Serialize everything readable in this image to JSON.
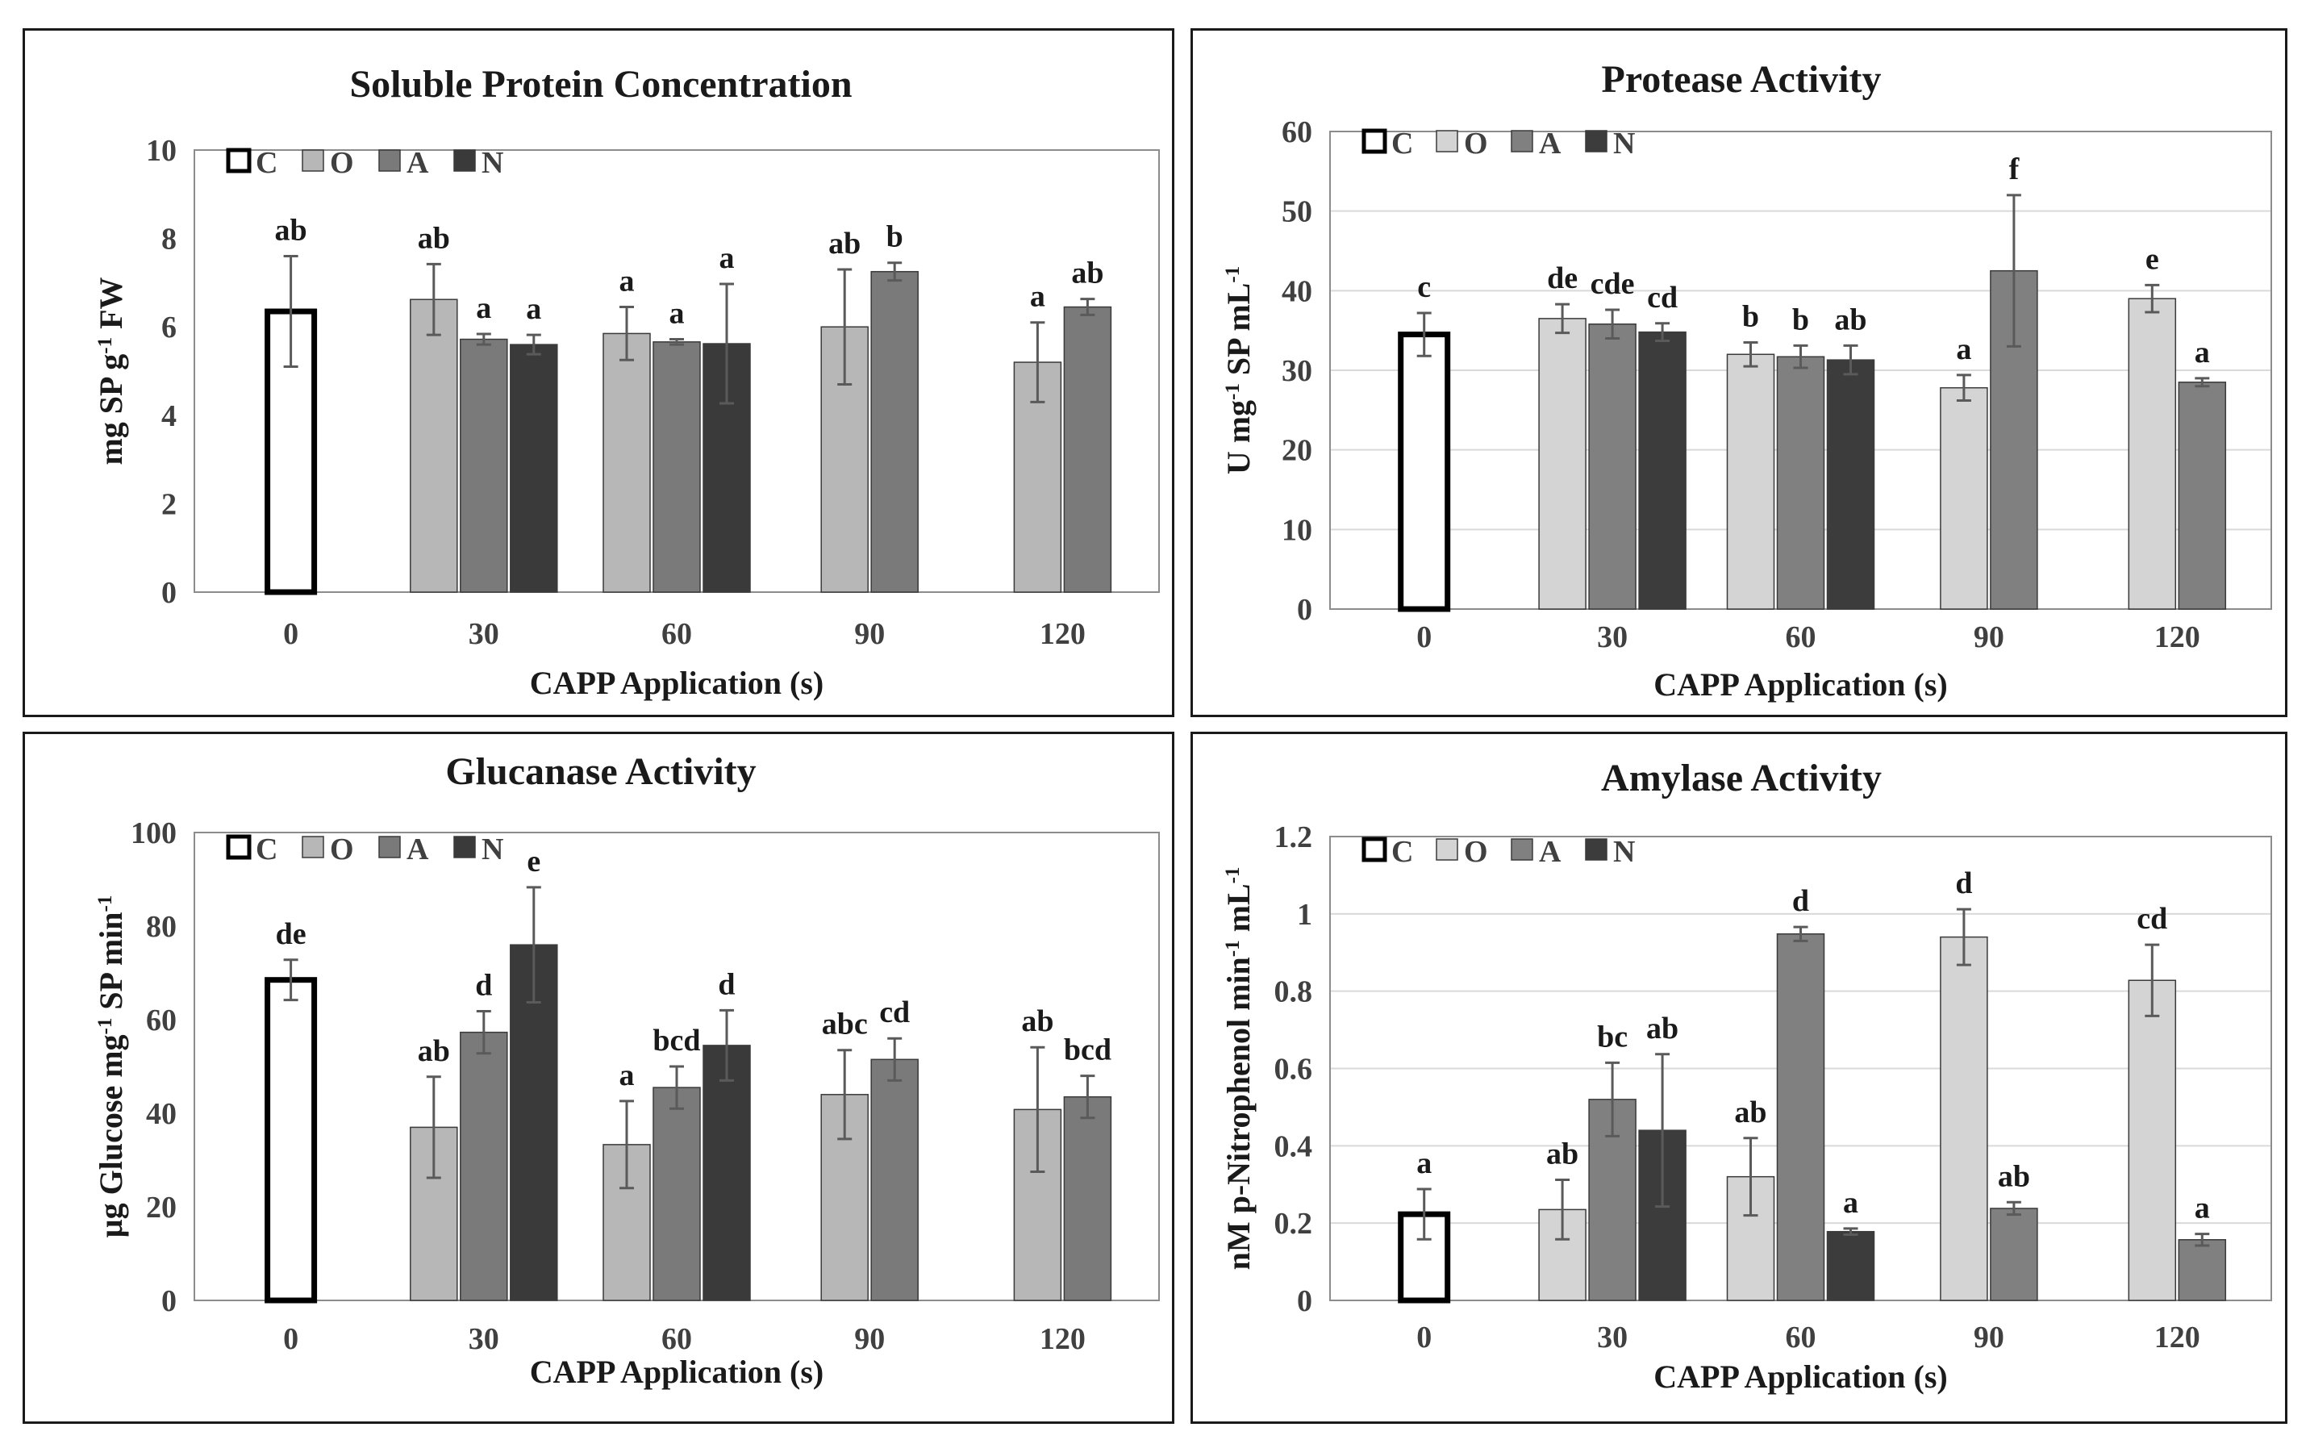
{
  "colors": {
    "C": "#ffffff",
    "O": "#b7b7b7",
    "A": "#7a7a7a",
    "N": "#3a3a3a",
    "O_light": "#d4d4d4",
    "A_light": "#808080",
    "N_light": "#3c3c3c",
    "grid": "#d9d9d9",
    "axis": "#8c8c8c",
    "errorbar": "#5a5a5a"
  },
  "chart_data": [
    {
      "type": "bar",
      "title": "Soluble Protein Concentration",
      "ylabel": "mg SP g⁻¹ FW",
      "xlabel": "CAPP Application (s)",
      "ylim": [
        0,
        10
      ],
      "yticks": [
        0,
        2,
        4,
        6,
        8,
        10
      ],
      "grid": false,
      "legend_position": "top-left",
      "categories": [
        "0",
        "30",
        "60",
        "90",
        "120"
      ],
      "series": [
        {
          "name": "C",
          "values": [
            6.35,
            null,
            null,
            null,
            null
          ],
          "errors": [
            1.25,
            null,
            null,
            null,
            null
          ],
          "letters": [
            "ab",
            null,
            null,
            null,
            null
          ]
        },
        {
          "name": "O",
          "values": [
            null,
            6.62,
            5.85,
            6.0,
            5.2
          ],
          "errors": [
            null,
            0.8,
            0.6,
            1.3,
            0.9
          ],
          "letters": [
            null,
            "ab",
            "a",
            "ab",
            "a"
          ]
        },
        {
          "name": "A",
          "values": [
            null,
            5.72,
            5.66,
            7.25,
            6.45
          ],
          "errors": [
            null,
            0.12,
            0.06,
            0.2,
            0.18
          ],
          "letters": [
            null,
            "a",
            "a",
            "b",
            "ab"
          ]
        },
        {
          "name": "N",
          "values": [
            null,
            5.6,
            5.62,
            null,
            null
          ],
          "errors": [
            null,
            0.22,
            1.35,
            null,
            null
          ],
          "letters": [
            null,
            "a",
            "a",
            null,
            null
          ]
        }
      ]
    },
    {
      "type": "bar",
      "title": "Protease Activity",
      "ylabel": "U mg⁻¹ SP mL⁻¹",
      "xlabel": "CAPP Application (s)",
      "ylim": [
        0,
        60
      ],
      "yticks": [
        0,
        10,
        20,
        30,
        40,
        50,
        60
      ],
      "grid": true,
      "legend_position": "top-left",
      "categories": [
        "0",
        "30",
        "60",
        "90",
        "120"
      ],
      "series": [
        {
          "name": "C",
          "values": [
            34.5,
            null,
            null,
            null,
            null
          ],
          "errors": [
            2.7,
            null,
            null,
            null,
            null
          ],
          "letters": [
            "c",
            null,
            null,
            null,
            null
          ]
        },
        {
          "name": "O",
          "values": [
            null,
            36.5,
            32.0,
            27.8,
            39.0
          ],
          "errors": [
            null,
            1.8,
            1.5,
            1.6,
            1.7
          ],
          "letters": [
            null,
            "de",
            "b",
            "a",
            "e"
          ]
        },
        {
          "name": "A",
          "values": [
            null,
            35.8,
            31.7,
            42.5,
            28.5
          ],
          "errors": [
            null,
            1.8,
            1.4,
            9.5,
            0.5
          ],
          "letters": [
            null,
            "cde",
            "b",
            "f",
            "a"
          ]
        },
        {
          "name": "N",
          "values": [
            null,
            34.8,
            31.3,
            null,
            null
          ],
          "errors": [
            null,
            1.1,
            1.8,
            null,
            null
          ],
          "letters": [
            null,
            "cd",
            "ab",
            null,
            null
          ]
        }
      ]
    },
    {
      "type": "bar",
      "title": "Glucanase Activity",
      "ylabel": "µg Glucose mg⁻¹ SP min⁻¹",
      "xlabel": "CAPP Application (s)",
      "ylim": [
        0,
        100
      ],
      "yticks": [
        0,
        20,
        40,
        60,
        80,
        100
      ],
      "grid": false,
      "legend_position": "top-left",
      "categories": [
        "0",
        "30",
        "60",
        "90",
        "120"
      ],
      "series": [
        {
          "name": "C",
          "values": [
            68.5,
            null,
            null,
            null,
            null
          ],
          "errors": [
            4.3,
            null,
            null,
            null,
            null
          ],
          "letters": [
            "de",
            null,
            null,
            null,
            null
          ]
        },
        {
          "name": "O",
          "values": [
            null,
            37.0,
            33.3,
            44.0,
            40.8
          ],
          "errors": [
            null,
            10.8,
            9.3,
            9.5,
            13.3
          ],
          "letters": [
            null,
            "ab",
            "a",
            "abc",
            "ab"
          ]
        },
        {
          "name": "A",
          "values": [
            null,
            57.3,
            45.5,
            51.5,
            43.5
          ],
          "errors": [
            null,
            4.5,
            4.5,
            4.5,
            4.5
          ],
          "letters": [
            null,
            "d",
            "bcd",
            "cd",
            "bcd"
          ]
        },
        {
          "name": "N",
          "values": [
            null,
            76.0,
            54.5,
            null,
            null
          ],
          "errors": [
            null,
            12.3,
            7.5,
            null,
            null
          ],
          "letters": [
            null,
            "e",
            "d",
            null,
            null
          ]
        }
      ]
    },
    {
      "type": "bar",
      "title": "Amylase Activity",
      "ylabel": "nM p-Nitrophenol min⁻¹ mL⁻¹",
      "xlabel": "CAPP Application (s)",
      "ylim": [
        0,
        1.2
      ],
      "yticks": [
        0,
        0.2,
        0.4,
        0.6,
        0.8,
        1,
        1.2
      ],
      "grid": true,
      "legend_position": "top-left",
      "categories": [
        "0",
        "30",
        "60",
        "90",
        "120"
      ],
      "series": [
        {
          "name": "C",
          "values": [
            0.223,
            null,
            null,
            null,
            null
          ],
          "errors": [
            0.065,
            null,
            null,
            null,
            null
          ],
          "letters": [
            "a",
            null,
            null,
            null,
            null
          ]
        },
        {
          "name": "O",
          "values": [
            null,
            0.235,
            0.32,
            0.94,
            0.828
          ],
          "errors": [
            null,
            0.077,
            0.1,
            0.072,
            0.092
          ],
          "letters": [
            null,
            "ab",
            "ab",
            "d",
            "cd"
          ]
        },
        {
          "name": "A",
          "values": [
            null,
            0.52,
            0.948,
            0.238,
            0.157
          ],
          "errors": [
            null,
            0.095,
            0.018,
            0.016,
            0.015
          ],
          "letters": [
            null,
            "bc",
            "d",
            "ab",
            "a"
          ]
        },
        {
          "name": "N",
          "values": [
            null,
            0.44,
            0.178,
            null,
            null
          ],
          "errors": [
            null,
            0.197,
            0.008,
            null,
            null
          ],
          "letters": [
            null,
            "ab",
            "a",
            null,
            null
          ]
        }
      ]
    }
  ]
}
